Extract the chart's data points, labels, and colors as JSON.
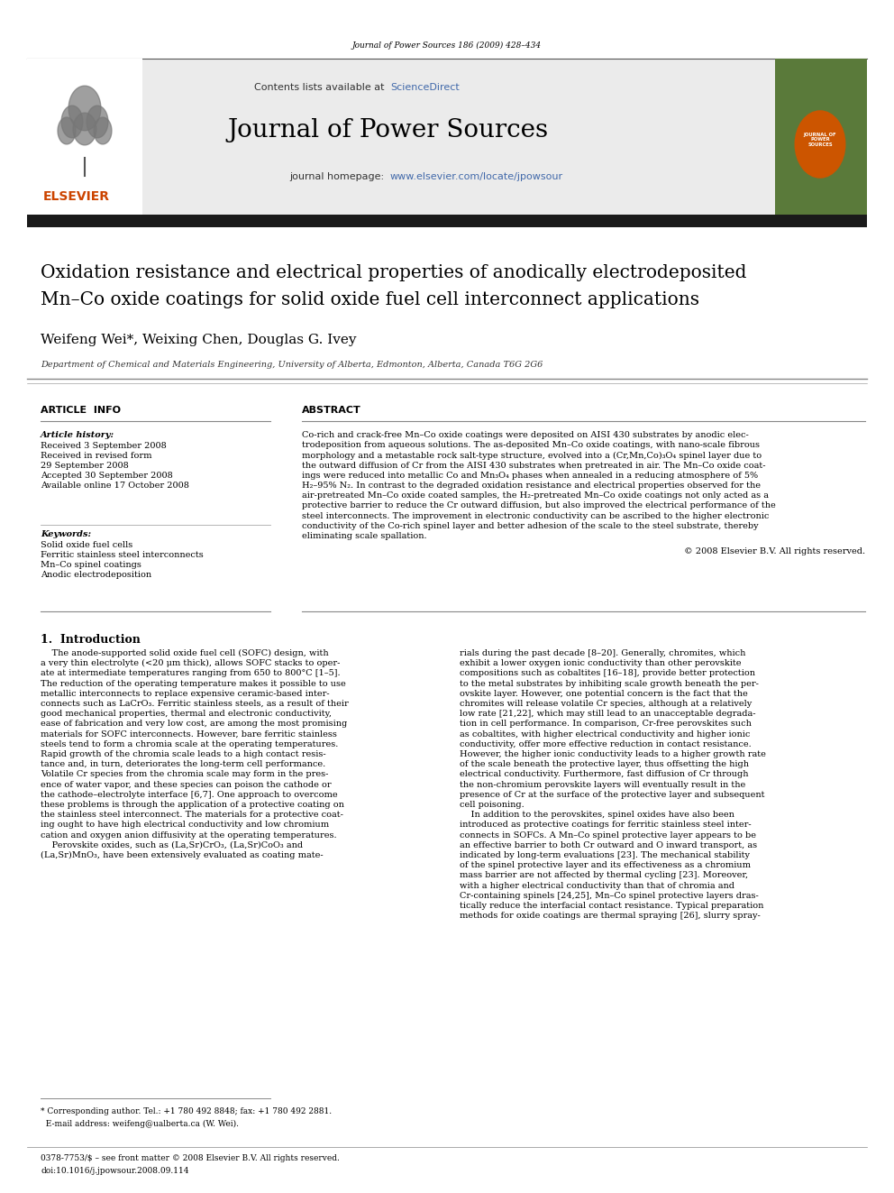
{
  "page_width": 9.92,
  "page_height": 13.23,
  "background_color": "#ffffff",
  "journal_ref": "Journal of Power Sources 186 (2009) 428–434",
  "contents_text": "Contents lists available at ",
  "sciencedirect_text": "ScienceDirect",
  "sciencedirect_color": "#4169aa",
  "journal_name": "Journal of Power Sources",
  "journal_homepage_text": "journal homepage: ",
  "journal_url": "www.elsevier.com/locate/jpowsour",
  "journal_url_color": "#4169aa",
  "article_title_line1": "Oxidation resistance and electrical properties of anodically electrodeposited",
  "article_title_line2": "Mn–Co oxide coatings for solid oxide fuel cell interconnect applications",
  "authors": "Weifeng Wei*, Weixing Chen, Douglas G. Ivey",
  "affiliation": "Department of Chemical and Materials Engineering, University of Alberta, Edmonton, Alberta, Canada T6G 2G6",
  "article_info_header": "ARTICLE  INFO",
  "abstract_header": "ABSTRACT",
  "article_history_label": "Article history:",
  "received_label": "Received 3 September 2008",
  "received_revised_label": "Received in revised form",
  "received_revised_date": "29 September 2008",
  "accepted_label": "Accepted 30 September 2008",
  "available_label": "Available online 17 October 2008",
  "keywords_label": "Keywords:",
  "keyword1": "Solid oxide fuel cells",
  "keyword2": "Ferritic stainless steel interconnects",
  "keyword3": "Mn–Co spinel coatings",
  "keyword4": "Anodic electrodeposition",
  "abstract_lines": [
    "Co-rich and crack-free Mn–Co oxide coatings were deposited on AISI 430 substrates by anodic elec-",
    "trodeposition from aqueous solutions. The as-deposited Mn–Co oxide coatings, with nano-scale fibrous",
    "morphology and a metastable rock salt-type structure, evolved into a (Cr,Mn,Co)₃O₄ spinel layer due to",
    "the outward diffusion of Cr from the AISI 430 substrates when pretreated in air. The Mn–Co oxide coat-",
    "ings were reduced into metallic Co and Mn₃O₄ phases when annealed in a reducing atmosphere of 5%",
    "H₂–95% N₂. In contrast to the degraded oxidation resistance and electrical properties observed for the",
    "air-pretreated Mn–Co oxide coated samples, the H₂-pretreated Mn–Co oxide coatings not only acted as a",
    "protective barrier to reduce the Cr outward diffusion, but also improved the electrical performance of the",
    "steel interconnects. The improvement in electronic conductivity can be ascribed to the higher electronic",
    "conductivity of the Co-rich spinel layer and better adhesion of the scale to the steel substrate, thereby",
    "eliminating scale spallation."
  ],
  "copyright_text": "© 2008 Elsevier B.V. All rights reserved.",
  "section1_title": "1.  Introduction",
  "left_col_lines": [
    "    The anode-supported solid oxide fuel cell (SOFC) design, with",
    "a very thin electrolyte (<20 μm thick), allows SOFC stacks to oper-",
    "ate at intermediate temperatures ranging from 650 to 800°C [1–5].",
    "The reduction of the operating temperature makes it possible to use",
    "metallic interconnects to replace expensive ceramic-based inter-",
    "connects such as LaCrO₃. Ferritic stainless steels, as a result of their",
    "good mechanical properties, thermal and electronic conductivity,",
    "ease of fabrication and very low cost, are among the most promising",
    "materials for SOFC interconnects. However, bare ferritic stainless",
    "steels tend to form a chromia scale at the operating temperatures.",
    "Rapid growth of the chromia scale leads to a high contact resis-",
    "tance and, in turn, deteriorates the long-term cell performance.",
    "Volatile Cr species from the chromia scale may form in the pres-",
    "ence of water vapor, and these species can poison the cathode or",
    "the cathode–electrolyte interface [6,7]. One approach to overcome",
    "these problems is through the application of a protective coating on",
    "the stainless steel interconnect. The materials for a protective coat-",
    "ing ought to have high electrical conductivity and low chromium",
    "cation and oxygen anion diffusivity at the operating temperatures.",
    "    Perovskite oxides, such as (La,Sr)CrO₃, (La,Sr)CoO₃ and",
    "(La,Sr)MnO₃, have been extensively evaluated as coating mate-"
  ],
  "right_col_lines": [
    "rials during the past decade [8–20]. Generally, chromites, which",
    "exhibit a lower oxygen ionic conductivity than other perovskite",
    "compositions such as cobaltites [16–18], provide better protection",
    "to the metal substrates by inhibiting scale growth beneath the per-",
    "ovskite layer. However, one potential concern is the fact that the",
    "chromites will release volatile Cr species, although at a relatively",
    "low rate [21,22], which may still lead to an unacceptable degrada-",
    "tion in cell performance. In comparison, Cr-free perovskites such",
    "as cobaltites, with higher electrical conductivity and higher ionic",
    "conductivity, offer more effective reduction in contact resistance.",
    "However, the higher ionic conductivity leads to a higher growth rate",
    "of the scale beneath the protective layer, thus offsetting the high",
    "electrical conductivity. Furthermore, fast diffusion of Cr through",
    "the non-chromium perovskite layers will eventually result in the",
    "presence of Cr at the surface of the protective layer and subsequent",
    "cell poisoning.",
    "    In addition to the perovskites, spinel oxides have also been",
    "introduced as protective coatings for ferritic stainless steel inter-",
    "connects in SOFCs. A Mn–Co spinel protective layer appears to be",
    "an effective barrier to both Cr outward and O inward transport, as",
    "indicated by long-term evaluations [23]. The mechanical stability",
    "of the spinel protective layer and its effectiveness as a chromium",
    "mass barrier are not affected by thermal cycling [23]. Moreover,",
    "with a higher electrical conductivity than that of chromia and",
    "Cr-containing spinels [24,25], Mn–Co spinel protective layers dras-",
    "tically reduce the interfacial contact resistance. Typical preparation",
    "methods for oxide coatings are thermal spraying [26], slurry spray-"
  ],
  "footnote_line1": "* Corresponding author. Tel.: +1 780 492 8848; fax: +1 780 492 2881.",
  "footnote_line2": "  E-mail address: weifeng@ualberta.ca (W. Wei).",
  "footer_text1": "0378-7753/$ – see front matter © 2008 Elsevier B.V. All rights reserved.",
  "footer_text2": "doi:10.1016/j.jpowsour.2008.09.114",
  "green_cover_color": "#5a7a3a",
  "elsevier_color": "#cc4400",
  "link_blue": "#4169aa"
}
